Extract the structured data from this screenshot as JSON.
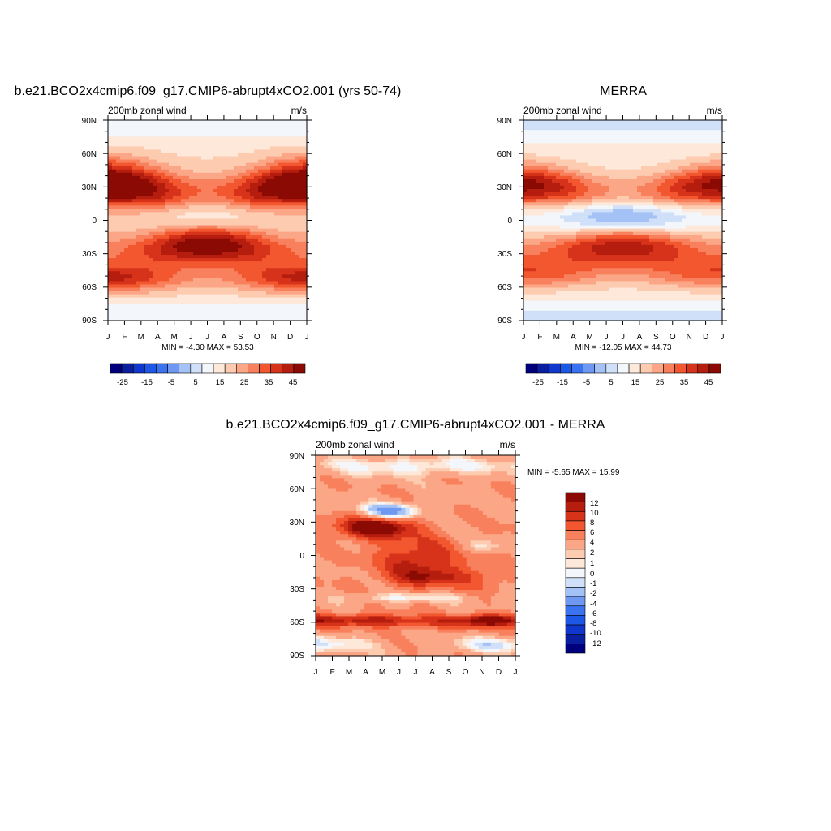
{
  "chart_data": [
    {
      "type": "heatmap",
      "title": "b.e21.BCO2x4cmip6.f09_g17.CMIP6-abrupt4xCO2.001 (yrs 50-74)",
      "left_label": "200mb zonal wind",
      "units": "m/s",
      "x_ticks": [
        "J",
        "F",
        "M",
        "A",
        "M",
        "J",
        "J",
        "A",
        "S",
        "O",
        "N",
        "D",
        "J"
      ],
      "y_ticks": [
        "90N",
        "60N",
        "30N",
        "0",
        "30S",
        "60S",
        "90S"
      ],
      "stats": "MIN =  -4.30 MAX =  53.53",
      "colorbar_labels": [
        "-25",
        "-15",
        "-5",
        "5",
        "15",
        "25",
        "35",
        "45"
      ],
      "levels": [
        -30,
        -25,
        -20,
        -15,
        -10,
        -5,
        0,
        5,
        10,
        15,
        20,
        25,
        30,
        35,
        40,
        45,
        50
      ],
      "colors": [
        "#00007f",
        "#0a1fa0",
        "#1037cc",
        "#1d57e6",
        "#3a72f0",
        "#6f98f2",
        "#a4c2f5",
        "#cfe0f8",
        "#f3f6fb",
        "#fde8d9",
        "#fccbb0",
        "#fba686",
        "#f8805c",
        "#f2572f",
        "#d6331a",
        "#b51d0f",
        "#8c0a04"
      ],
      "field": {
        "type": "jet",
        "bg": 14,
        "features": [
          {
            "lat0": 32,
            "latAmp": -12,
            "w": 15,
            "amp": [
              44,
              20
            ]
          },
          {
            "lat0": -28,
            "latAmp": 6,
            "w": 13,
            "amp": [
              14,
              37
            ]
          },
          {
            "lat0": -52,
            "latAmp": 0,
            "w": 9,
            "amp": [
              25,
              8
            ]
          },
          {
            "lat0": 5,
            "latAmp": 0,
            "w": 11,
            "amp": [
              -3,
              -17
            ]
          }
        ]
      }
    },
    {
      "type": "heatmap",
      "title": "MERRA",
      "left_label": "200mb zonal wind",
      "units": "m/s",
      "x_ticks": [
        "J",
        "F",
        "M",
        "A",
        "M",
        "J",
        "J",
        "A",
        "S",
        "O",
        "N",
        "D",
        "J"
      ],
      "y_ticks": [
        "90N",
        "60N",
        "30N",
        "0",
        "30S",
        "60S",
        "90S"
      ],
      "stats": "MIN = -12.05 MAX =  44.73",
      "colorbar_labels": [
        "-25",
        "-15",
        "-5",
        "5",
        "15",
        "25",
        "35",
        "45"
      ],
      "levels": [
        -30,
        -25,
        -20,
        -15,
        -10,
        -5,
        0,
        5,
        10,
        15,
        20,
        25,
        30,
        35,
        40,
        45,
        50
      ],
      "colors": [
        "#00007f",
        "#0a1fa0",
        "#1037cc",
        "#1d57e6",
        "#3a72f0",
        "#6f98f2",
        "#a4c2f5",
        "#cfe0f8",
        "#f3f6fb",
        "#fde8d9",
        "#fccbb0",
        "#fba686",
        "#f8805c",
        "#f2572f",
        "#d6331a",
        "#b51d0f",
        "#8c0a04"
      ],
      "field": {
        "type": "jet",
        "bg": 12,
        "features": [
          {
            "lat0": 31,
            "latAmp": -9,
            "w": 13,
            "amp": [
              36,
              16
            ]
          },
          {
            "lat0": -28,
            "latAmp": 5,
            "w": 13,
            "amp": [
              14,
              32
            ]
          },
          {
            "lat0": -48,
            "latAmp": 0,
            "w": 10,
            "amp": [
              18,
              8
            ]
          },
          {
            "lat0": 4,
            "latAmp": 0,
            "w": 11,
            "amp": [
              -7,
              -26
            ]
          }
        ]
      }
    },
    {
      "type": "heatmap",
      "title": "b.e21.BCO2x4cmip6.f09_g17.CMIP6-abrupt4xCO2.001 - MERRA",
      "left_label": "200mb zonal wind",
      "units": "m/s",
      "x_ticks": [
        "J",
        "F",
        "M",
        "A",
        "M",
        "J",
        "J",
        "A",
        "S",
        "O",
        "N",
        "D",
        "J"
      ],
      "y_ticks": [
        "90N",
        "60N",
        "30N",
        "0",
        "30S",
        "60S",
        "90S"
      ],
      "stats": "MIN =  -5.65 MAX =  15.99",
      "colorbar_labels": [
        "12",
        "10",
        "8",
        "6",
        "4",
        "2",
        "1",
        "0",
        "-1",
        "-2",
        "-4",
        "-6",
        "-8",
        "-10",
        "-12"
      ],
      "levels": [
        -14,
        -12,
        -10,
        -8,
        -6,
        -4,
        -2,
        -1,
        0,
        1,
        2,
        4,
        6,
        8,
        10,
        12
      ],
      "colors": [
        "#00007f",
        "#0a1fa0",
        "#1037cc",
        "#1d57e6",
        "#3a72f0",
        "#6f98f2",
        "#a4c2f5",
        "#cfe0f8",
        "#f3f6fb",
        "#fde8d9",
        "#fccbb0",
        "#fba686",
        "#f8805c",
        "#f2572f",
        "#d6331a",
        "#b51d0f",
        "#8c0a04"
      ],
      "field": {
        "type": "diff",
        "bg": 3.5,
        "features": [
          {
            "month": 3.5,
            "lat": 25,
            "sx": 1.6,
            "sy": 7,
            "amp": 11
          },
          {
            "month": 6.2,
            "lat": -5,
            "sx": 1.8,
            "sy": 15,
            "amp": 7
          },
          {
            "month": 6.5,
            "lat": -20,
            "sx": 1.5,
            "sy": 5,
            "amp": 4
          },
          {
            "month": 4.5,
            "lat": 40,
            "sx": 1.2,
            "sy": 5,
            "amp": -9
          },
          {
            "month": 3.0,
            "lat": -58,
            "sx": 2.2,
            "sy": 4,
            "amp": 7
          },
          {
            "month": 10.5,
            "lat": -58,
            "sx": 1.3,
            "sy": 4,
            "amp": 8
          },
          {
            "month": 8,
            "lat": -60,
            "sx": 3,
            "sy": 4,
            "amp": 4
          },
          {
            "month": 5.5,
            "lat": -38,
            "sx": 2.5,
            "sy": 3,
            "amp": -4
          },
          {
            "month": 10,
            "lat": 8,
            "sx": 1.0,
            "sy": 4,
            "amp": -3
          },
          {
            "month": 6,
            "lat": 80,
            "sx": 5,
            "sy": 6,
            "amp": -4
          },
          {
            "month": 9.8,
            "lat": -20,
            "sx": 1.5,
            "sy": 8,
            "amp": 3
          },
          {
            "month": 1,
            "lat": -80,
            "sx": 2,
            "sy": 5,
            "amp": -3.5
          },
          {
            "month": 10,
            "lat": -80,
            "sx": 1.5,
            "sy": 5,
            "amp": -3
          }
        ]
      }
    }
  ]
}
